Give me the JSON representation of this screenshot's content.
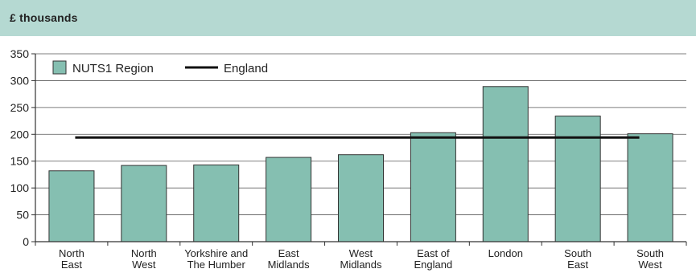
{
  "header": {
    "unit_label": "£ thousands"
  },
  "colors": {
    "header_band": "#b5d9d2",
    "bar_fill": "#85bfb1",
    "bar_stroke": "#333333",
    "england_line": "#111111"
  },
  "chart_data": {
    "type": "bar",
    "categories": [
      [
        "North",
        "East"
      ],
      [
        "North",
        "West"
      ],
      [
        "Yorkshire and",
        "The Humber"
      ],
      [
        "East",
        "Midlands"
      ],
      [
        "West",
        "Midlands"
      ],
      [
        "East of",
        "England"
      ],
      [
        "London"
      ],
      [
        "South",
        "East"
      ],
      [
        "South",
        "West"
      ]
    ],
    "series": [
      {
        "name": "NUTS1 Region",
        "type": "bar",
        "values": [
          132,
          142,
          143,
          157,
          162,
          203,
          289,
          234,
          201
        ]
      },
      {
        "name": "England",
        "type": "line",
        "value": 194
      }
    ],
    "ylim": [
      0,
      350
    ],
    "yticks": [
      0,
      50,
      100,
      150,
      200,
      250,
      300,
      350
    ],
    "grid": true,
    "legend": "top-left"
  }
}
